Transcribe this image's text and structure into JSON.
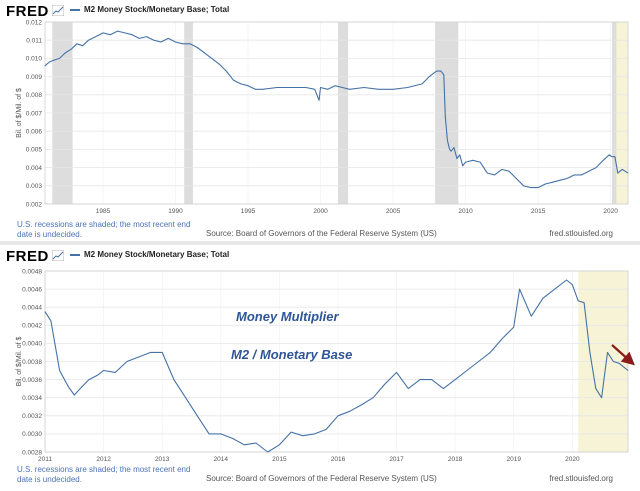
{
  "header": {
    "logo": "FRED",
    "series_title": "M2 Money Stock/Monetary Base; Total"
  },
  "footer": {
    "recession_note": "U.S. recessions are shaded; the most recent end date is undecided.",
    "source": "Source: Board of Governors of the Federal Reserve System (US)",
    "url": "fred.stlouisfed.org"
  },
  "annotations": {
    "line1": "Money Multiplier",
    "line2": "M2 / Monetary Base"
  },
  "colors": {
    "line": "#4572a7",
    "recession": "#dddddd",
    "highlight": "#f7f3d7",
    "arrow": "#8b1a1a",
    "annotation": "#2f5597"
  },
  "chart_data": [
    {
      "type": "line",
      "title": "M2 Money Stock/Monetary Base; Total",
      "ylabel": "Bil. of $/Mil. of $",
      "xlim": [
        1981,
        2021.2
      ],
      "ylim": [
        0.002,
        0.012
      ],
      "yticks": [
        "0.012",
        "0.011",
        "0.010",
        "0.009",
        "0.008",
        "0.007",
        "0.006",
        "0.005",
        "0.004",
        "0.003",
        "0.002"
      ],
      "ytick_values": [
        0.012,
        0.011,
        0.01,
        0.009,
        0.008,
        0.007,
        0.006,
        0.005,
        0.004,
        0.003,
        0.002
      ],
      "xticks": [
        "1985",
        "1990",
        "1995",
        "2000",
        "2005",
        "2010",
        "2015",
        "2020"
      ],
      "xtick_values": [
        1985,
        1990,
        1995,
        2000,
        2005,
        2010,
        2015,
        2020
      ],
      "recessions": [
        [
          1981.5,
          1982.9
        ],
        [
          1990.6,
          1991.2
        ],
        [
          2001.2,
          2001.9
        ],
        [
          2007.9,
          2009.5
        ],
        [
          2020.1,
          2020.4
        ]
      ],
      "highlight": [
        2020.1,
        2021.2
      ],
      "x": [
        1981.0,
        1981.3,
        1981.6,
        1982.0,
        1982.4,
        1982.8,
        1983.2,
        1983.6,
        1984.0,
        1984.5,
        1985.0,
        1985.5,
        1986.0,
        1986.5,
        1987.0,
        1987.5,
        1988.0,
        1988.5,
        1989.0,
        1989.5,
        1990.0,
        1990.5,
        1991.0,
        1991.5,
        1992.0,
        1992.5,
        1993.0,
        1993.5,
        1994.0,
        1994.5,
        1995.0,
        1995.5,
        1996.0,
        1997.0,
        1998.0,
        1999.0,
        1999.6,
        1999.9,
        2000.0,
        2000.5,
        2001.0,
        2001.5,
        2002.0,
        2003.0,
        2004.0,
        2005.0,
        2006.0,
        2007.0,
        2007.5,
        2008.0,
        2008.3,
        2008.5,
        2008.6,
        2008.75,
        2008.9,
        2009.0,
        2009.2,
        2009.4,
        2009.6,
        2009.8,
        2010.0,
        2010.5,
        2011.0,
        2011.5,
        2012.0,
        2012.5,
        2013.0,
        2013.5,
        2014.0,
        2014.5,
        2015.0,
        2015.5,
        2016.0,
        2016.5,
        2017.0,
        2017.5,
        2018.0,
        2018.5,
        2019.0,
        2019.5,
        2019.9,
        2020.1,
        2020.3,
        2020.5,
        2020.8,
        2021.0,
        2021.2
      ],
      "y": [
        0.0096,
        0.0098,
        0.0099,
        0.01,
        0.0103,
        0.0105,
        0.0108,
        0.0107,
        0.011,
        0.0112,
        0.0114,
        0.0113,
        0.0115,
        0.0114,
        0.0113,
        0.0111,
        0.0112,
        0.011,
        0.0109,
        0.0111,
        0.0109,
        0.0108,
        0.0108,
        0.0106,
        0.0103,
        0.01,
        0.0097,
        0.0093,
        0.0088,
        0.0086,
        0.0085,
        0.0083,
        0.0083,
        0.0084,
        0.0084,
        0.0084,
        0.0083,
        0.0077,
        0.0084,
        0.0083,
        0.0085,
        0.0084,
        0.0083,
        0.0084,
        0.0083,
        0.0083,
        0.0084,
        0.0086,
        0.009,
        0.0093,
        0.0093,
        0.0091,
        0.0068,
        0.0055,
        0.005,
        0.0049,
        0.0051,
        0.0045,
        0.0047,
        0.0041,
        0.0043,
        0.0044,
        0.0043,
        0.0037,
        0.0036,
        0.0039,
        0.0038,
        0.0034,
        0.003,
        0.0029,
        0.0029,
        0.0031,
        0.0032,
        0.0033,
        0.0034,
        0.0036,
        0.0036,
        0.0038,
        0.004,
        0.0044,
        0.0047,
        0.0046,
        0.0046,
        0.0037,
        0.0039,
        0.0038,
        0.0037
      ]
    },
    {
      "type": "line",
      "title": "M2 Money Stock/Monetary Base; Total",
      "ylabel": "Bil. of $/Mil. of $",
      "xlim": [
        2011,
        2020.95
      ],
      "ylim": [
        0.0028,
        0.0048
      ],
      "yticks": [
        "0.0048",
        "0.0046",
        "0.0044",
        "0.0042",
        "0.0040",
        "0.0038",
        "0.0036",
        "0.0034",
        "0.0032",
        "0.0030",
        "0.0028"
      ],
      "ytick_values": [
        0.0048,
        0.0046,
        0.0044,
        0.0042,
        0.004,
        0.0038,
        0.0036,
        0.0034,
        0.0032,
        0.003,
        0.0028
      ],
      "xticks": [
        "2011",
        "2012",
        "2013",
        "2014",
        "2015",
        "2016",
        "2017",
        "2018",
        "2019",
        "2020"
      ],
      "xtick_values": [
        2011,
        2012,
        2013,
        2014,
        2015,
        2016,
        2017,
        2018,
        2019,
        2020
      ],
      "highlight": [
        2020.1,
        2020.95
      ],
      "x": [
        2011.0,
        2011.1,
        2011.25,
        2011.4,
        2011.5,
        2011.6,
        2011.75,
        2011.9,
        2012.0,
        2012.2,
        2012.4,
        2012.6,
        2012.8,
        2013.0,
        2013.2,
        2013.4,
        2013.6,
        2013.8,
        2014.0,
        2014.2,
        2014.4,
        2014.6,
        2014.8,
        2015.0,
        2015.2,
        2015.4,
        2015.6,
        2015.8,
        2016.0,
        2016.2,
        2016.4,
        2016.6,
        2016.8,
        2017.0,
        2017.2,
        2017.4,
        2017.6,
        2017.8,
        2018.0,
        2018.2,
        2018.4,
        2018.6,
        2018.8,
        2019.0,
        2019.1,
        2019.3,
        2019.5,
        2019.7,
        2019.9,
        2020.0,
        2020.1,
        2020.2,
        2020.3,
        2020.4,
        2020.5,
        2020.6,
        2020.7,
        2020.8,
        2020.95
      ],
      "y": [
        0.00435,
        0.00425,
        0.0037,
        0.00352,
        0.00343,
        0.0035,
        0.0036,
        0.00365,
        0.0037,
        0.00368,
        0.0038,
        0.00385,
        0.0039,
        0.0039,
        0.0036,
        0.0034,
        0.0032,
        0.003,
        0.003,
        0.00295,
        0.00288,
        0.0029,
        0.0028,
        0.00288,
        0.00302,
        0.00298,
        0.003,
        0.00305,
        0.0032,
        0.00325,
        0.00332,
        0.0034,
        0.00355,
        0.00368,
        0.0035,
        0.0036,
        0.0036,
        0.0035,
        0.0036,
        0.0037,
        0.0038,
        0.0039,
        0.00405,
        0.00418,
        0.0046,
        0.0043,
        0.0045,
        0.0046,
        0.0047,
        0.00465,
        0.00447,
        0.00445,
        0.0039,
        0.0035,
        0.0034,
        0.0039,
        0.0038,
        0.00378,
        0.0037
      ]
    }
  ]
}
